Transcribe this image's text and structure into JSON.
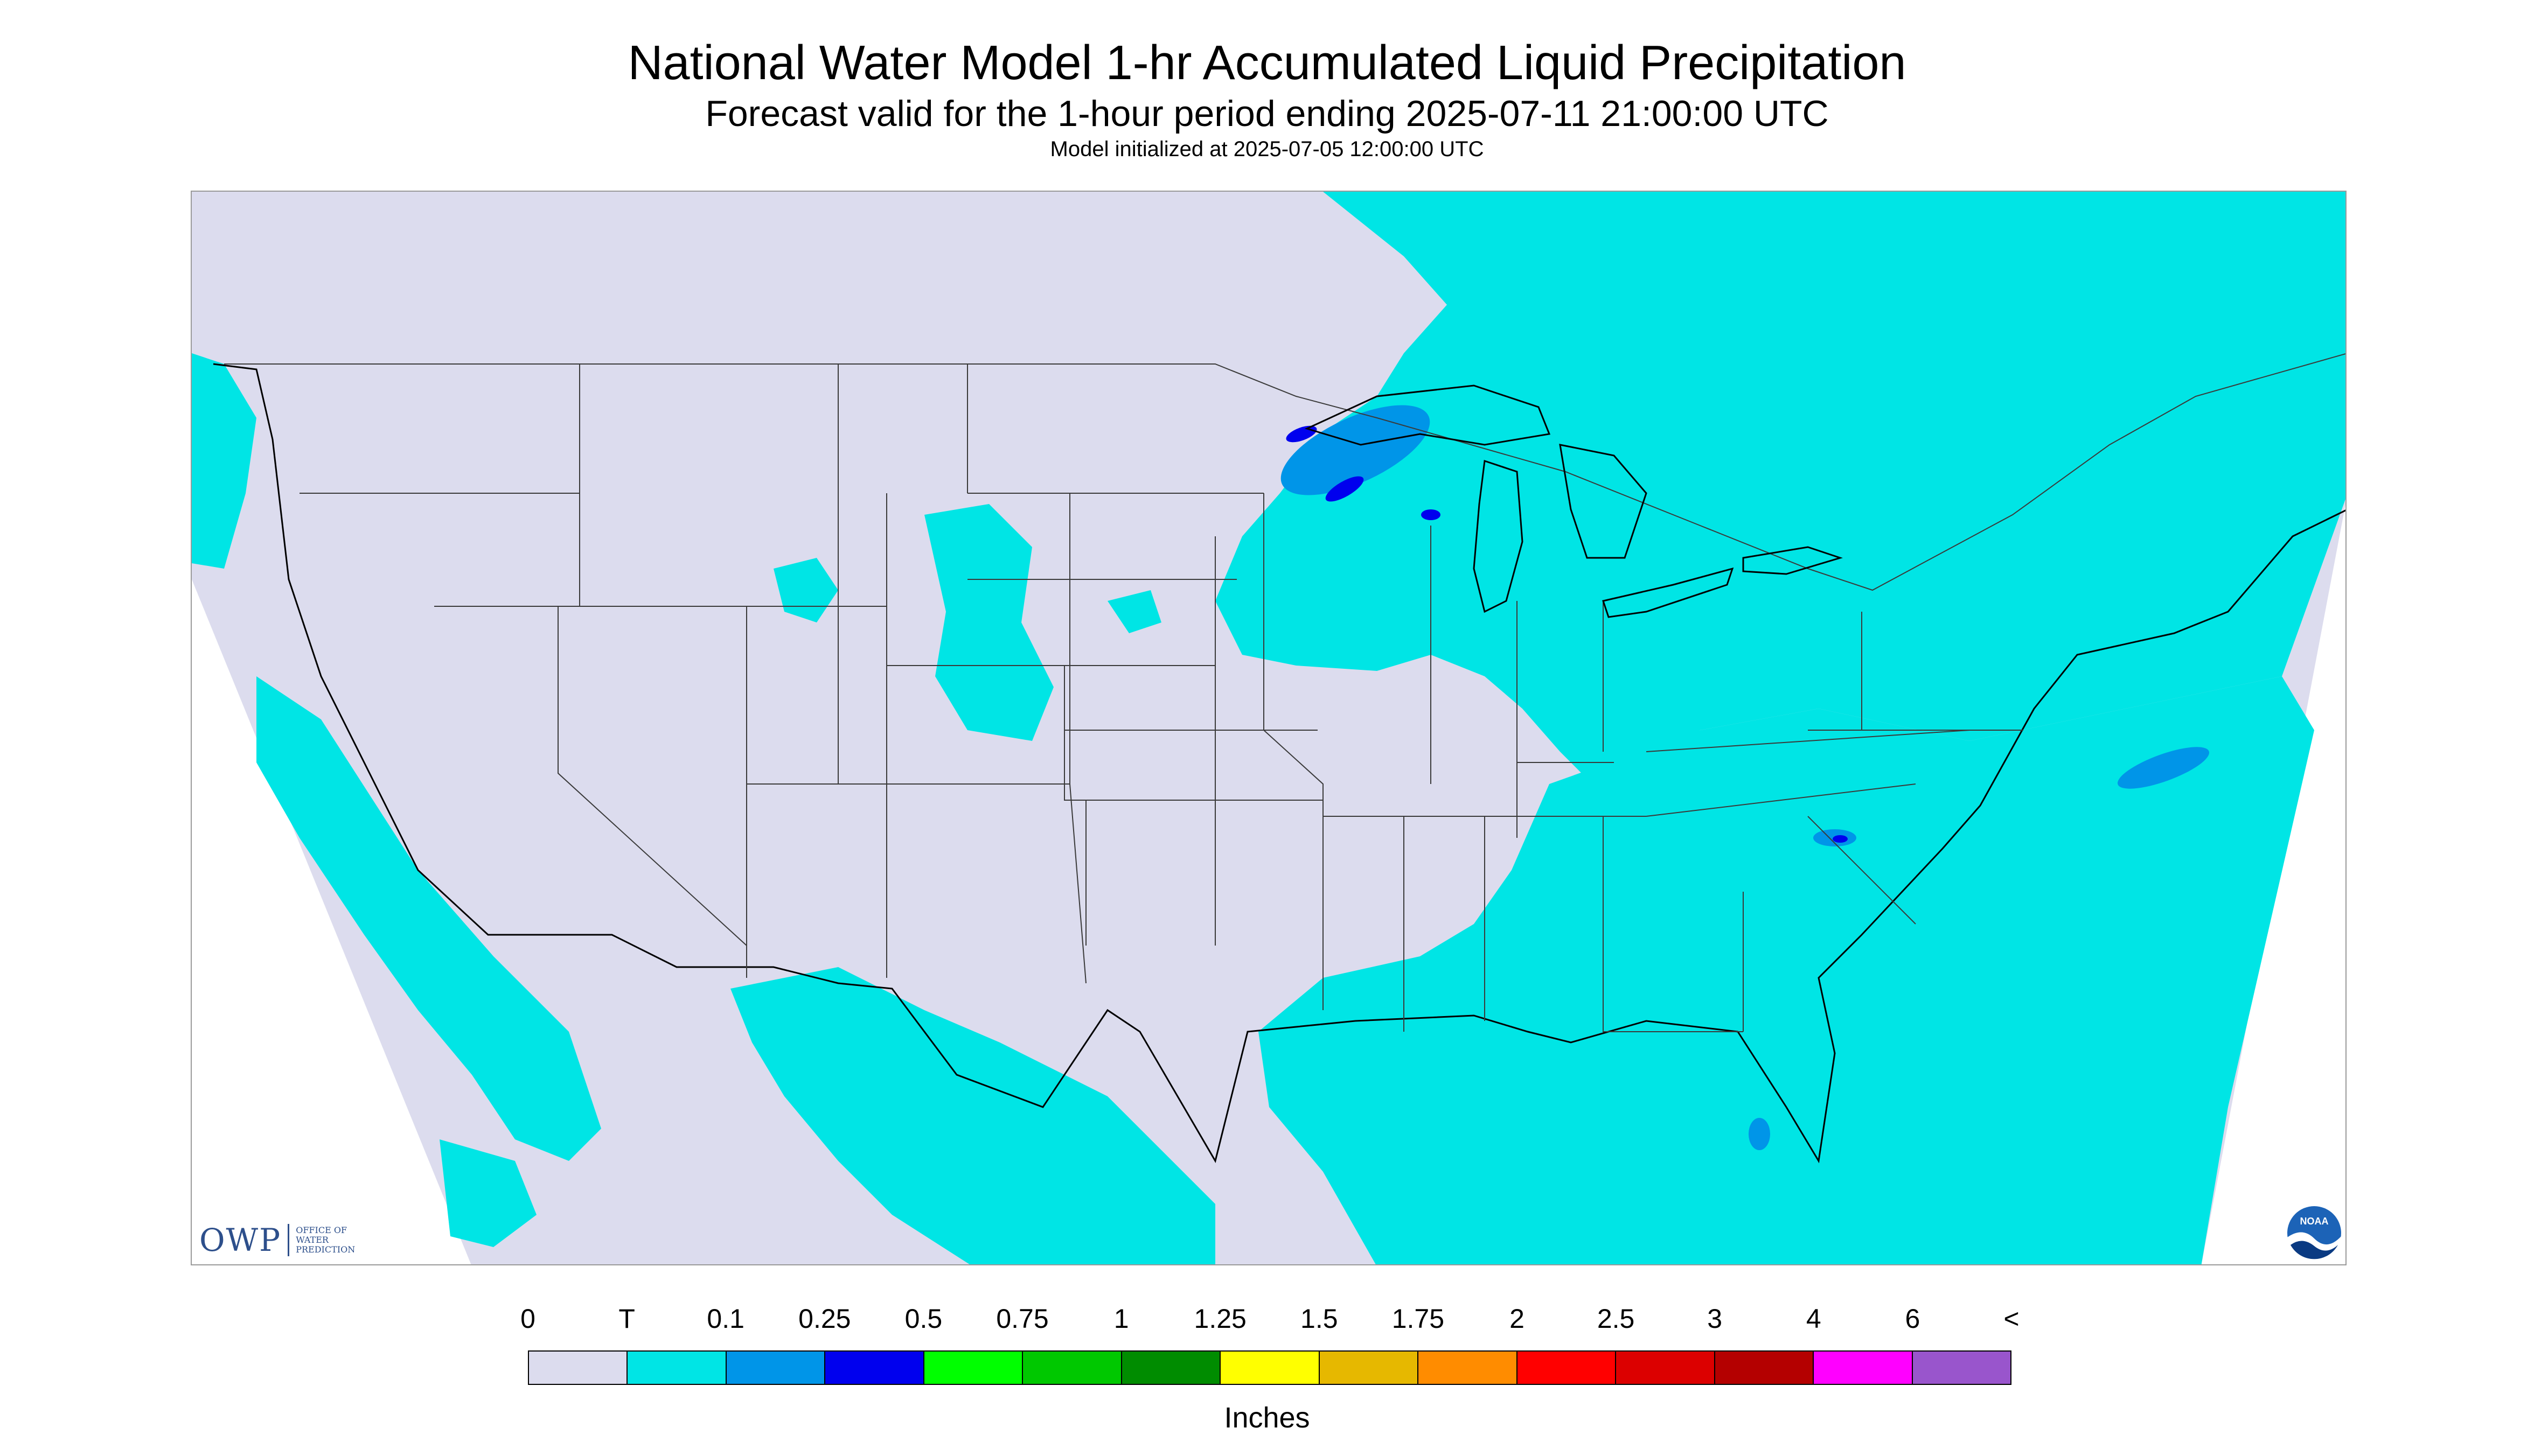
{
  "title": "National Water Model 1-hr Accumulated Liquid Precipitation",
  "subtitle": "Forecast valid for the 1-hour period ending 2025-07-11 21:00:00 UTC",
  "init_line": "Model initialized at 2025-07-05 12:00:00 UTC",
  "owp_logo": {
    "abbr": "OWP",
    "lines": [
      "OFFICE OF",
      "WATER",
      "PREDICTION"
    ]
  },
  "noaa_logo": {
    "text": "NOAA",
    "icon": "noaa-emblem-icon"
  },
  "map": {
    "background_color": "#dcdcee",
    "outside_color": "#ffffff",
    "trace_color": "#00e5e5",
    "light_color": "#0095e8",
    "heavy_color": "#0000ee",
    "boundary_color": "#3a3a3a",
    "coast_color": "#000000"
  },
  "legend": {
    "labels": [
      "0",
      "T",
      "0.1",
      "0.25",
      "0.5",
      "0.75",
      "1",
      "1.25",
      "1.5",
      "1.75",
      "2",
      "2.5",
      "3",
      "4",
      "6",
      "<"
    ],
    "colors": [
      "#dcdcee",
      "#00e5e5",
      "#0095e8",
      "#0000ee",
      "#00ff00",
      "#00c800",
      "#008c00",
      "#ffff00",
      "#e6b800",
      "#ff8c00",
      "#ff0000",
      "#dc0000",
      "#b40000",
      "#ff00ff",
      "#9955cc"
    ],
    "units": "Inches"
  }
}
